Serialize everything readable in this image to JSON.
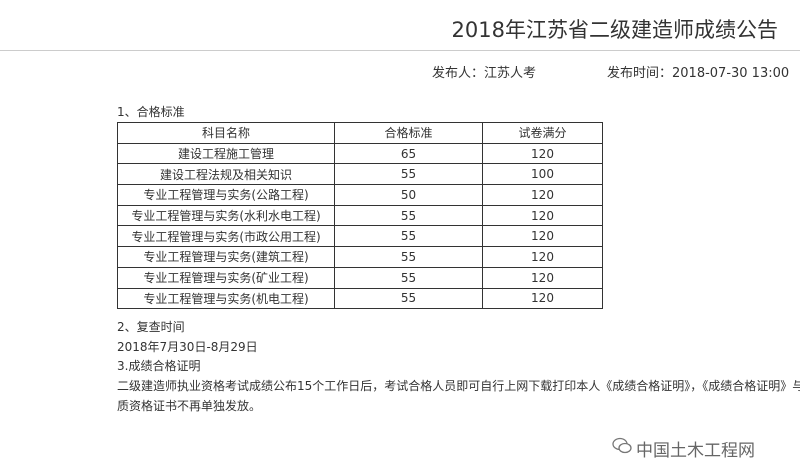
{
  "header": {
    "title": "2018年江苏省二级建造师成绩公告",
    "publisher": "发布人：江苏人考",
    "time": "发布时间：2018-07-30 13:00"
  },
  "sections": [
    {
      "heading": "1、合格标准"
    },
    {
      "heading": "2、复查时间",
      "text": "2018年7月30日-8月29日"
    },
    {
      "heading": "3.成绩合格证明",
      "lines": [
        "二级建造师执业资格考试成绩公布15个工作日后，考试合格人员即可自行上网下载打印本人《成绩合格证明》，《成绩合格证明》与",
        "质资格证书不再单独发放。"
      ]
    }
  ],
  "table": {
    "header": [
      "科目名称",
      "合格标准",
      "试卷满分"
    ],
    "rows": [
      [
        "建设工程施工管理",
        65,
        120
      ],
      [
        "建设工程法规及相关知识",
        55,
        100
      ],
      [
        "专业工程管理与实务(公路工程)",
        50,
        120
      ],
      [
        "专业工程管理与实务(水利水电工程)",
        55,
        120
      ],
      [
        "专业工程管理与实务(市政公用工程)",
        55,
        120
      ],
      [
        "专业工程管理与实务(建筑工程)",
        55,
        120
      ],
      [
        "专业工程管理与实务(矿业工程)",
        55,
        120
      ],
      [
        "专业工程管理与实务(机电工程)",
        55,
        120
      ]
    ]
  },
  "watermark": "中国土木工程网"
}
